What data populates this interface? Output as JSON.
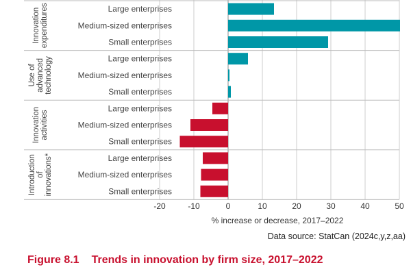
{
  "chart_data": {
    "type": "bar",
    "orientation": "horizontal",
    "xlabel": "% increase or decrease, 2017–2022",
    "xlim": [
      -20,
      50
    ],
    "xticks": [
      -20,
      -10,
      0,
      10,
      20,
      30,
      40,
      50
    ],
    "grid": true,
    "colors": {
      "positive": "#0097a7",
      "negative": "#c8102e"
    },
    "groups": [
      {
        "name": [
          "Innovation",
          "expenditures"
        ],
        "categories": [
          "Large enterprises",
          "Medium-sized enterprises",
          "Small enterprises"
        ],
        "values": [
          13.4,
          50.2,
          29.2
        ]
      },
      {
        "name": [
          "Use of",
          "advanced",
          "technology"
        ],
        "categories": [
          "Large enterprises",
          "Medium-sized enterprises",
          "Small enterprises"
        ],
        "values": [
          5.8,
          0.4,
          0.8
        ]
      },
      {
        "name": [
          "Innovation",
          "activities"
        ],
        "categories": [
          "Large enterprises",
          "Medium-sized enterprises",
          "Small enterprises"
        ],
        "values": [
          -4.6,
          -11.0,
          -14.1
        ]
      },
      {
        "name": [
          "Introduction",
          "of",
          "innovations*"
        ],
        "categories": [
          "Large enterprises",
          "Medium-sized enterprises",
          "Small enterprises"
        ],
        "values": [
          -7.4,
          -7.9,
          -8.1
        ]
      }
    ]
  },
  "source": "Data source: StatCan (2024c,y,z,aa)",
  "figure": {
    "number": "Figure 8.1",
    "title": "Trends in innovation by firm size, 2017–2022"
  }
}
